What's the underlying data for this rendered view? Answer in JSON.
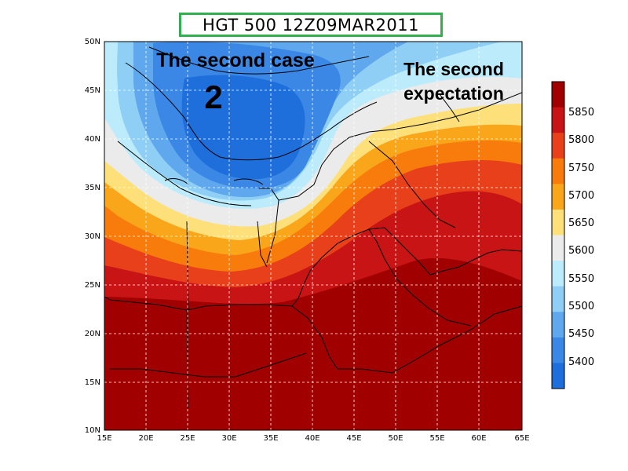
{
  "title": "HGT 500 12Z09MAR2011",
  "annotations": {
    "case_line": "The second case",
    "case_number": "2",
    "expect_line1": "The second",
    "expect_line2": "expectation"
  },
  "axes": {
    "lat_labels": [
      "50N",
      "45N",
      "40N",
      "35N",
      "30N",
      "25N",
      "20N",
      "15N",
      "10N"
    ],
    "lon_labels": [
      "15E",
      "20E",
      "25E",
      "30E",
      "35E",
      "40E",
      "45E",
      "50E",
      "55E",
      "60E",
      "65E"
    ]
  },
  "colorbar": {
    "labels": [
      "5850",
      "5800",
      "5750",
      "5700",
      "5650",
      "5600",
      "5550",
      "5500",
      "5450",
      "5400"
    ],
    "colors": [
      "#a00000",
      "#c81414",
      "#e8401a",
      "#f77c0c",
      "#f9a61b",
      "#fde07a",
      "#ebebeb",
      "#bcecfb",
      "#8fcff5",
      "#5fa8ee",
      "#3a87e5",
      "#1e6edc"
    ]
  },
  "palette": {
    "level_5650": "#ebebeb",
    "level_5550": "#bcecfb",
    "level_5500": "#8fcff5",
    "level_5450": "#5fa8ee",
    "level_5400": "#3a87e5",
    "level_min": "#1e6edc",
    "level_5700": "#fde07a",
    "level_5750": "#f9a61b",
    "level_5800": "#f77c0c",
    "level_5850": "#e8401a",
    "level_5900": "#c81414",
    "level_max": "#a00000"
  }
}
